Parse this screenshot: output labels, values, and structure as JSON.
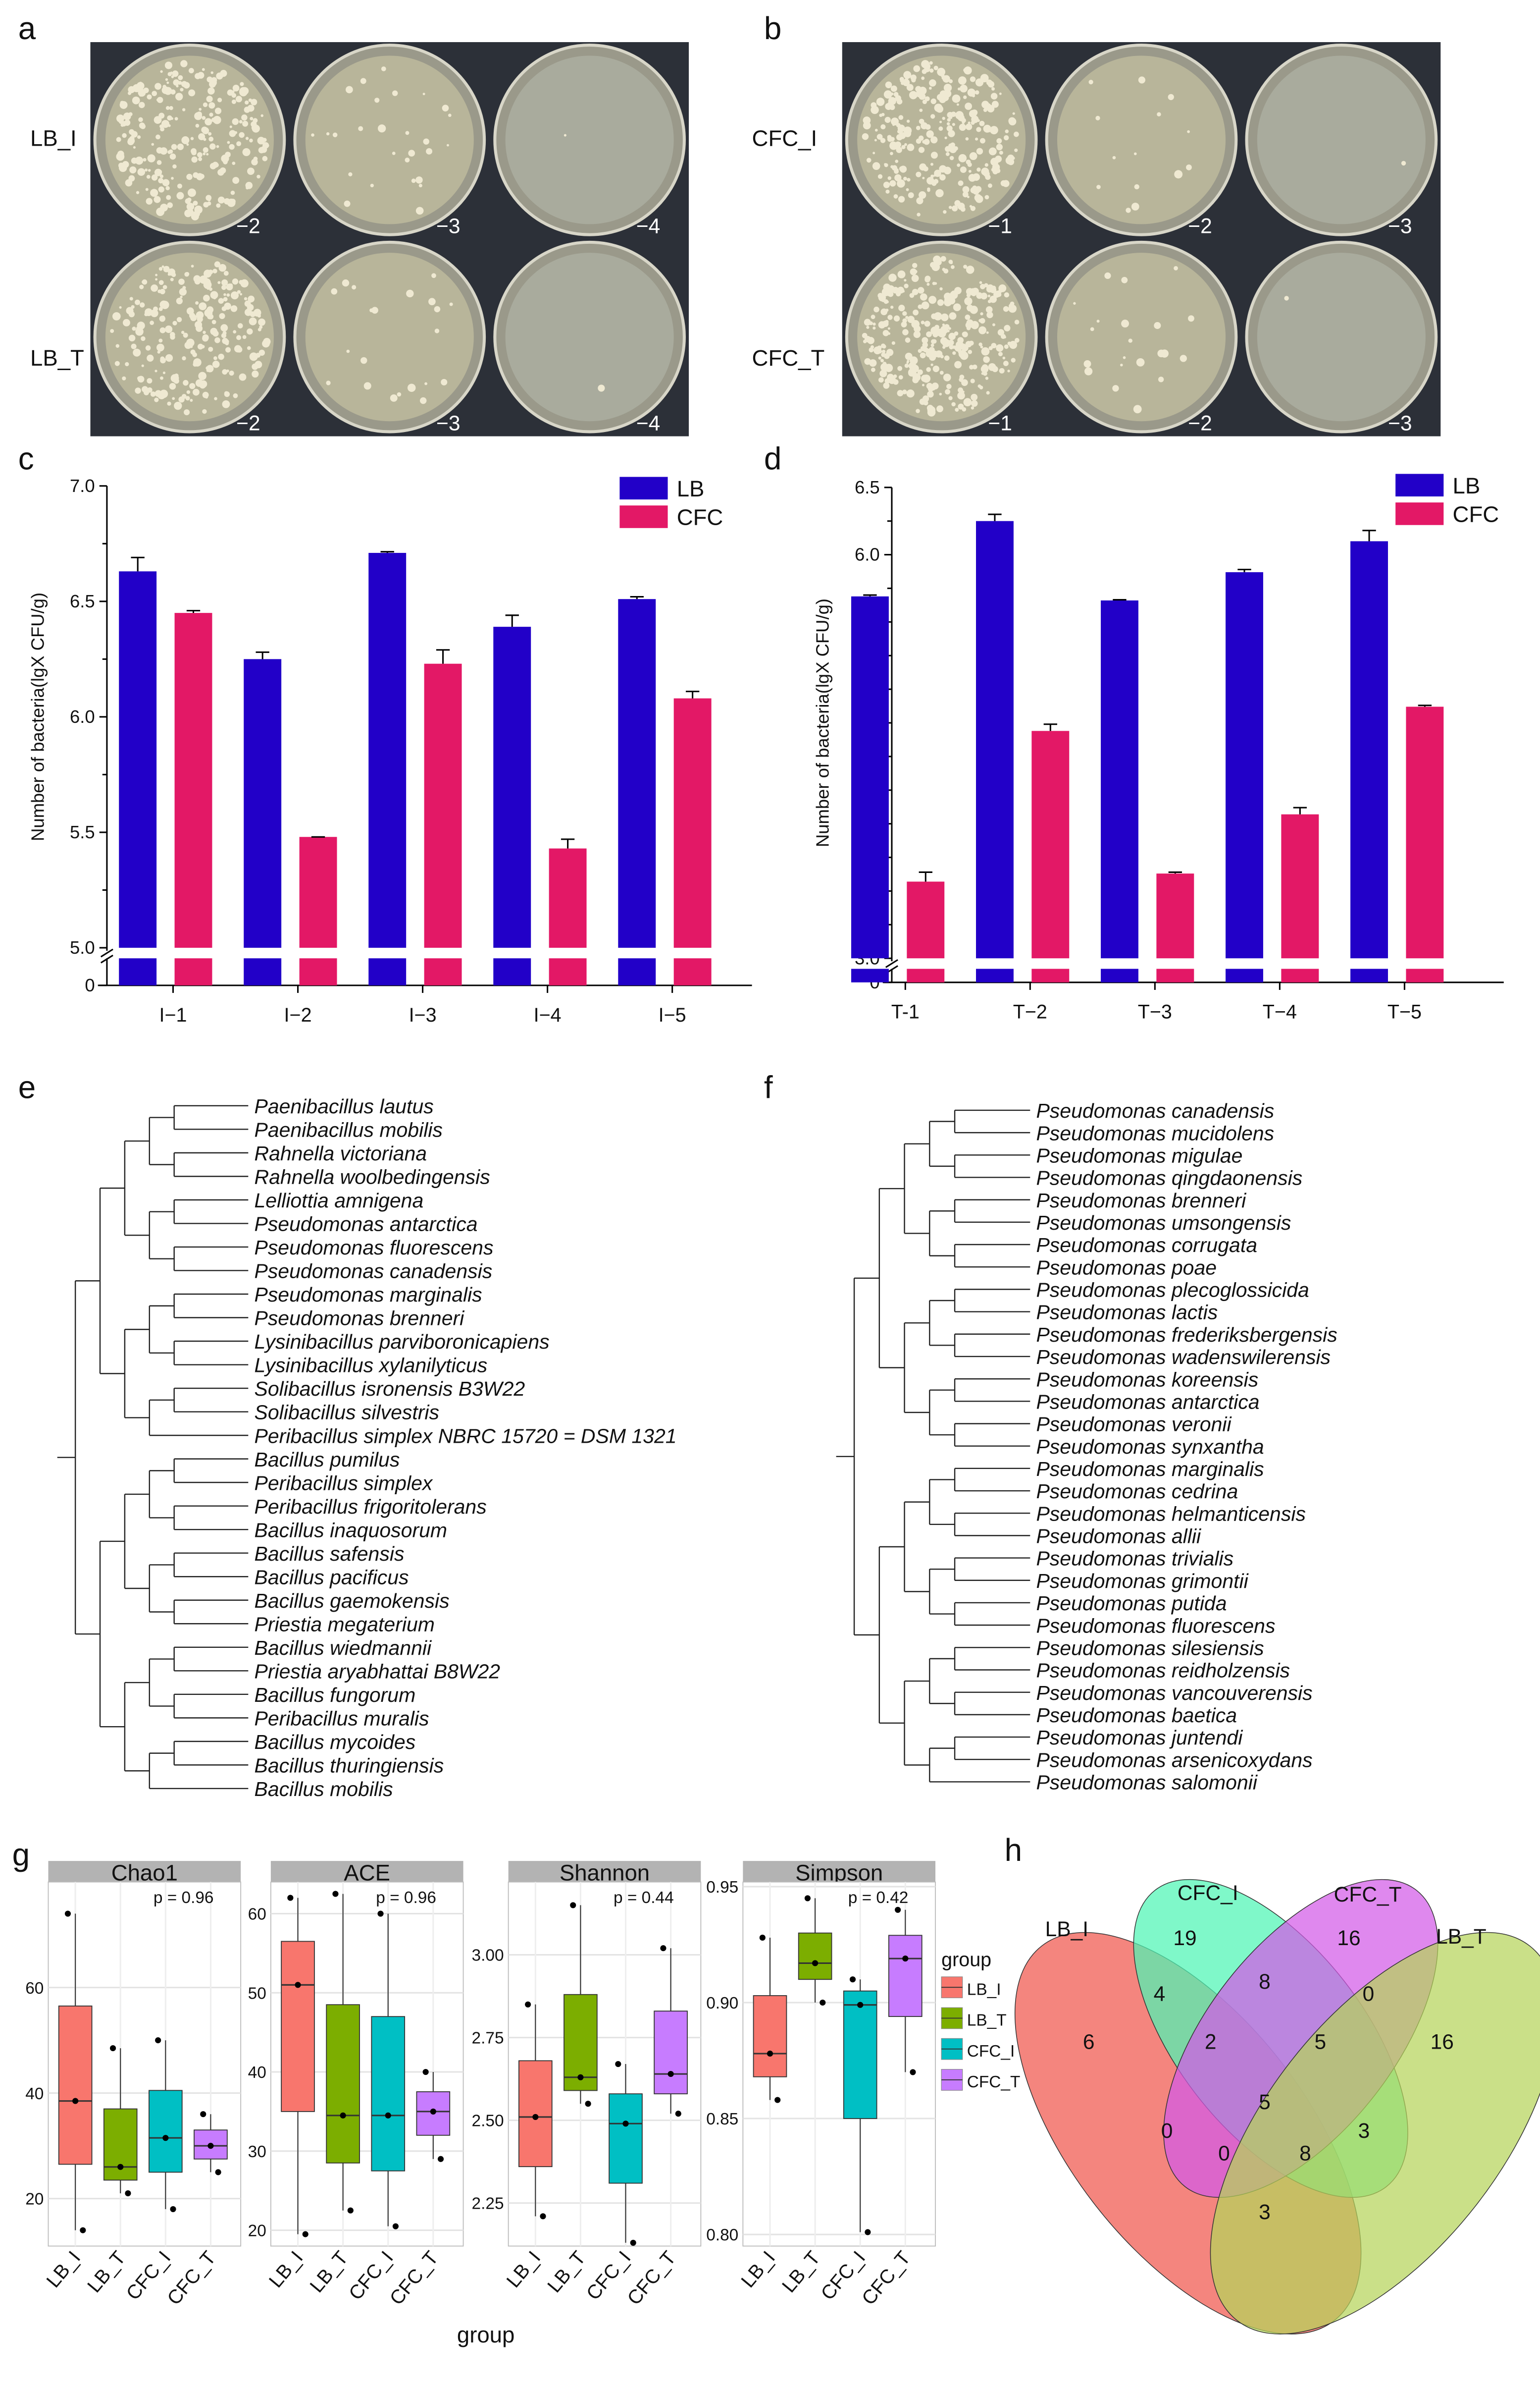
{
  "panel_labels": {
    "a": "a",
    "b": "b",
    "c": "c",
    "d": "d",
    "e": "e",
    "f": "f",
    "g": "g",
    "h": "h"
  },
  "plates": [
    {
      "panel": "a",
      "rows": [
        {
          "label": "LB_I",
          "dilutions": [
            "−2",
            "−3",
            "−4"
          ]
        },
        {
          "label": "LB_T",
          "dilutions": [
            "−2",
            "−3",
            "−4"
          ]
        }
      ]
    },
    {
      "panel": "b",
      "rows": [
        {
          "label": "CFC_I",
          "dilutions": [
            "−1",
            "−2",
            "−3"
          ]
        },
        {
          "label": "CFC_T",
          "dilutions": [
            "−1",
            "−2",
            "−3"
          ]
        }
      ]
    }
  ],
  "chart_data": [
    {
      "id": "c",
      "type": "bar",
      "categories": [
        "I−1",
        "I−2",
        "I−3",
        "I−4",
        "I−5"
      ],
      "series": [
        {
          "name": "LB",
          "color": "#2200c8",
          "values": [
            6.63,
            6.25,
            6.71,
            6.39,
            6.51
          ],
          "errors": [
            0.06,
            0.03,
            0.005,
            0.05,
            0.01
          ]
        },
        {
          "name": "CFC",
          "color": "#e31866",
          "values": [
            6.45,
            5.48,
            6.23,
            5.43,
            6.08
          ],
          "errors": [
            0.01,
            0,
            0.06,
            0.04,
            0.03
          ]
        }
      ],
      "ylabel": "Number of bacteria(lgX CFU/g)",
      "ylim": [
        5.0,
        7.0
      ],
      "axis_break": true,
      "yticks": [
        "7.0",
        "6.5",
        "6.0",
        "5.5",
        "5.0",
        "0"
      ],
      "legend": "top-right"
    },
    {
      "id": "d",
      "type": "bar",
      "categories": [
        "T-1",
        "T−2",
        "T−3",
        "T−4",
        "T−5"
      ],
      "series": [
        {
          "name": "LB",
          "color": "#2200c8",
          "values": [
            5.69,
            6.25,
            5.66,
            5.87,
            6.1
          ],
          "errors": [
            0.01,
            0.05,
            0.005,
            0.02,
            0.08
          ]
        },
        {
          "name": "CFC",
          "color": "#e31866",
          "values": [
            3.57,
            4.69,
            3.63,
            4.07,
            4.87
          ],
          "errors": [
            0.07,
            0.05,
            0.01,
            0.05,
            0.01
          ]
        }
      ],
      "ylabel": "Number of bacteria(lgX CFU/g)",
      "ylim": [
        3.0,
        6.5
      ],
      "axis_break": true,
      "yticks": [
        "6.5",
        "6.0",
        "5.5",
        "5.0",
        "4.5",
        "4.0",
        "3.5",
        "3.0",
        "0"
      ],
      "legend": "top-right"
    },
    {
      "id": "g",
      "type": "box",
      "xlabel": "group",
      "legend_title": "group",
      "groups": [
        "LB_I",
        "LB_T",
        "CFC_I",
        "CFC_T"
      ],
      "group_colors": [
        "#F8766D",
        "#7CAE00",
        "#00BFC4",
        "#C77CFF"
      ],
      "facets": [
        {
          "title": "Chao1",
          "p": "p = 0.96",
          "ylim": [
            11,
            80
          ],
          "yticks": [
            20,
            40,
            60
          ],
          "tick_labels": [
            "20",
            "40",
            "60"
          ],
          "boxes": [
            {
              "q1": 26.5,
              "med": 38.5,
              "q3": 56.5,
              "min": 14,
              "max": 74,
              "points": [
                74,
                38.5,
                14
              ]
            },
            {
              "q1": 23.5,
              "med": 26,
              "q3": 37,
              "min": 21,
              "max": 48.5,
              "points": [
                48.5,
                26,
                21
              ]
            },
            {
              "q1": 25,
              "med": 31.5,
              "q3": 40.5,
              "min": 18,
              "max": 50,
              "points": [
                50,
                31.5,
                18
              ]
            },
            {
              "q1": 27.5,
              "med": 30,
              "q3": 33,
              "min": 25,
              "max": 36,
              "points": [
                36,
                30,
                25
              ]
            }
          ]
        },
        {
          "title": "ACE",
          "p": "p = 0.96",
          "ylim": [
            18,
            64
          ],
          "yticks": [
            20,
            30,
            40,
            50,
            60
          ],
          "tick_labels": [
            "20",
            "30",
            "40",
            "50",
            "60"
          ],
          "boxes": [
            {
              "q1": 35,
              "med": 51,
              "q3": 56.5,
              "min": 19.5,
              "max": 62,
              "points": [
                62,
                51,
                19.5
              ]
            },
            {
              "q1": 28.5,
              "med": 34.5,
              "q3": 48.5,
              "min": 22.5,
              "max": 62.5,
              "points": [
                62.5,
                34.5,
                22.5
              ]
            },
            {
              "q1": 27.5,
              "med": 34.5,
              "q3": 47,
              "min": 20.5,
              "max": 60,
              "points": [
                60,
                34.5,
                20.5
              ]
            },
            {
              "q1": 32,
              "med": 35,
              "q3": 37.5,
              "min": 29,
              "max": 40,
              "points": [
                40,
                35,
                29
              ]
            }
          ]
        },
        {
          "title": "Shannon",
          "p": "p = 0.44",
          "ylim": [
            2.12,
            3.22
          ],
          "yticks": [
            2.25,
            2.5,
            2.75,
            3.0
          ],
          "tick_labels": [
            "2.25",
            "2.50",
            "2.75",
            "3.00"
          ],
          "boxes": [
            {
              "q1": 2.36,
              "med": 2.51,
              "q3": 2.68,
              "min": 2.21,
              "max": 2.85,
              "points": [
                2.85,
                2.51,
                2.21
              ]
            },
            {
              "q1": 2.59,
              "med": 2.63,
              "q3": 2.88,
              "min": 2.55,
              "max": 3.15,
              "points": [
                3.15,
                2.63,
                2.55
              ]
            },
            {
              "q1": 2.31,
              "med": 2.49,
              "q3": 2.58,
              "min": 2.13,
              "max": 2.67,
              "points": [
                2.67,
                2.49,
                2.13
              ]
            },
            {
              "q1": 2.58,
              "med": 2.64,
              "q3": 2.83,
              "min": 2.52,
              "max": 3.02,
              "points": [
                3.02,
                2.64,
                2.52
              ]
            }
          ]
        },
        {
          "title": "Simpson",
          "p": "p = 0.42",
          "ylim": [
            0.795,
            0.952
          ],
          "yticks": [
            0.8,
            0.85,
            0.9,
            0.95
          ],
          "tick_labels": [
            "0.80",
            "0.85",
            "0.90",
            "0.95"
          ],
          "boxes": [
            {
              "q1": 0.868,
              "med": 0.878,
              "q3": 0.903,
              "min": 0.858,
              "max": 0.928,
              "points": [
                0.928,
                0.878,
                0.858
              ]
            },
            {
              "q1": 0.91,
              "med": 0.917,
              "q3": 0.93,
              "min": 0.9,
              "max": 0.945,
              "points": [
                0.945,
                0.917,
                0.9
              ]
            },
            {
              "q1": 0.85,
              "med": 0.899,
              "q3": 0.905,
              "min": 0.801,
              "max": 0.91,
              "points": [
                0.91,
                0.899,
                0.801
              ]
            },
            {
              "q1": 0.894,
              "med": 0.919,
              "q3": 0.929,
              "min": 0.87,
              "max": 0.94,
              "points": [
                0.94,
                0.919,
                0.87
              ]
            }
          ]
        }
      ]
    }
  ],
  "tree_e": [
    "Paenibacillus lautus",
    "Paenibacillus mobilis",
    "Rahnella victoriana",
    "Rahnella woolbedingensis",
    "Lelliottia amnigena",
    "Pseudomonas antarctica",
    "Pseudomonas fluorescens",
    "Pseudomonas canadensis",
    "Pseudomonas marginalis",
    "Pseudomonas brenneri",
    "Lysinibacillus parviboronicapiens",
    "Lysinibacillus xylanilyticus",
    "Solibacillus isronensis B3W22",
    "Solibacillus silvestris",
    "Peribacillus simplex NBRC 15720 = DSM 1321",
    "Bacillus pumilus",
    "Peribacillus simplex",
    "Peribacillus frigoritolerans",
    "Bacillus inaquosorum",
    "Bacillus safensis",
    "Bacillus pacificus",
    "Bacillus gaemokensis",
    "Priestia megaterium",
    "Bacillus wiedmannii",
    "Priestia aryabhattai B8W22",
    "Bacillus fungorum",
    "Peribacillus muralis",
    "Bacillus mycoides",
    "Bacillus thuringiensis",
    "Bacillus mobilis"
  ],
  "tree_f": [
    "Pseudomonas canadensis",
    "Pseudomonas mucidolens",
    "Pseudomonas migulae",
    "Pseudomonas qingdaonensis",
    "Pseudomonas brenneri",
    "Pseudomonas umsongensis",
    "Pseudomonas corrugata",
    "Pseudomonas poae",
    "Pseudomonas plecoglossicida",
    "Pseudomonas lactis",
    "Pseudomonas frederiksbergensis",
    "Pseudomonas wadenswilerensis",
    "Pseudomonas koreensis",
    "Pseudomonas antarctica",
    "Pseudomonas veronii",
    "Pseudomonas synxantha",
    "Pseudomonas marginalis",
    "Pseudomonas cedrina",
    "Pseudomonas helmanticensis",
    "Pseudomonas allii",
    "Pseudomonas trivialis",
    "Pseudomonas grimontii",
    "Pseudomonas putida",
    "Pseudomonas fluorescens",
    "Pseudomonas silesiensis",
    "Pseudomonas reidholzensis",
    "Pseudomonas vancouverensis",
    "Pseudomonas baetica",
    "Pseudomonas juntendi",
    "Pseudomonas arsenicoxydans",
    "Pseudomonas salomonii"
  ],
  "venn": {
    "sets": [
      {
        "name": "LB_I",
        "color": "#f0564c"
      },
      {
        "name": "CFC_I",
        "color": "#4ef5b4"
      },
      {
        "name": "CFC_T",
        "color": "#d35ae8"
      },
      {
        "name": "LB_T",
        "color": "#b5d45a"
      }
    ],
    "counts": [
      {
        "region": "LB_I only",
        "value": "6"
      },
      {
        "region": "CFC_I only",
        "value": "19"
      },
      {
        "region": "CFC_T only",
        "value": "16"
      },
      {
        "region": "LB_T only",
        "value": "16"
      },
      {
        "region": "LB_I&CFC_I",
        "value": "4"
      },
      {
        "region": "CFC_I&CFC_T",
        "value": "8"
      },
      {
        "region": "CFC_T&LB_T",
        "value": "0"
      },
      {
        "region": "LB_I&CFC_I&CFC_T",
        "value": "2"
      },
      {
        "region": "CFC_I&CFC_T&LB_T",
        "value": "5"
      },
      {
        "region": "all",
        "value": "5"
      },
      {
        "region": "LB_I&CFC_T",
        "value": "0"
      },
      {
        "region": "CFC_I&LB_T",
        "value": "3"
      },
      {
        "region": "LB_I&CFC_T&LB_T",
        "value": "0"
      },
      {
        "region": "LB_I&CFC_I&LB_T",
        "value": "8"
      },
      {
        "region": "LB_I&LB_T",
        "value": "3"
      }
    ]
  }
}
